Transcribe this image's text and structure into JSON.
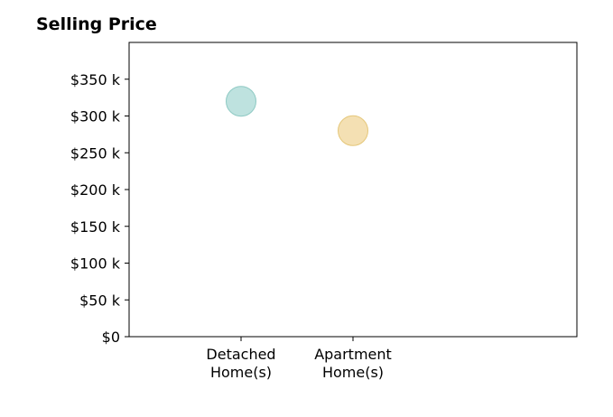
{
  "chart_data": {
    "type": "scatter",
    "title": "Selling Price",
    "xlabel": "",
    "ylabel": "",
    "categories": [
      "Detached Home(s)",
      "Apartment Home(s)"
    ],
    "category_lines": [
      [
        "Detached",
        "Home(s)"
      ],
      [
        "Apartment",
        "Home(s)"
      ]
    ],
    "values": [
      320000,
      280000
    ],
    "point_colors": [
      "#a8d8d4",
      "#f0d69a"
    ],
    "point_edge_colors": [
      "#8ec9c3",
      "#e5c77a"
    ],
    "ylim": [
      0,
      400000
    ],
    "yticks": [
      0,
      50000,
      100000,
      150000,
      200000,
      250000,
      300000,
      350000
    ],
    "ytick_labels": [
      "$0",
      "$50 k",
      "$100 k",
      "$150 k",
      "$200 k",
      "$250 k",
      "$300 k",
      "$350 k"
    ],
    "grid": false,
    "legend": "none"
  }
}
